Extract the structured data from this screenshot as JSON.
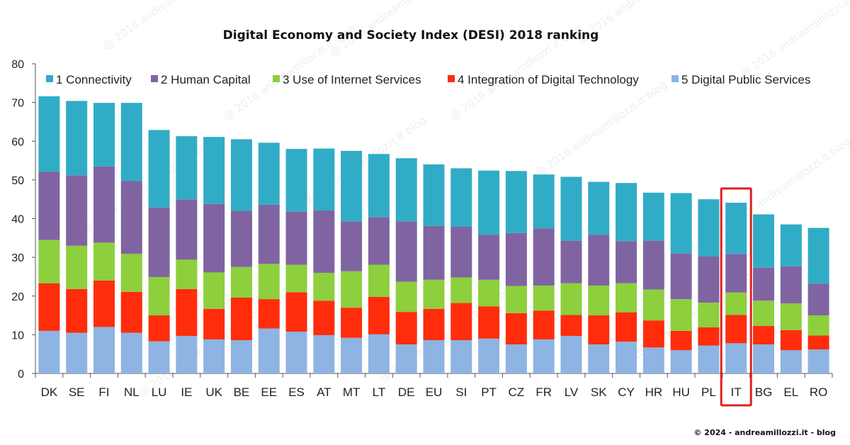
{
  "chart_data": {
    "type": "bar",
    "stacked": true,
    "title": "Digital Economy and Society Index (DESI) 2018 ranking",
    "xlabel": "",
    "ylabel": "",
    "ylim": [
      0,
      80
    ],
    "yticks": [
      0,
      10,
      20,
      30,
      40,
      50,
      60,
      70,
      80
    ],
    "grid": false,
    "legend_position": "top",
    "categories": [
      "DK",
      "SE",
      "FI",
      "NL",
      "LU",
      "IE",
      "UK",
      "BE",
      "EE",
      "ES",
      "AT",
      "MT",
      "LT",
      "DE",
      "EU",
      "SI",
      "PT",
      "CZ",
      "FR",
      "LV",
      "SK",
      "CY",
      "HR",
      "HU",
      "PL",
      "IT",
      "BG",
      "EL",
      "RO"
    ],
    "series": [
      {
        "name": "5 Digital Public Services",
        "color": "#8DB4E2",
        "values": [
          11.0,
          10.5,
          12.0,
          10.5,
          8.3,
          9.7,
          8.8,
          8.6,
          11.6,
          10.8,
          9.9,
          9.2,
          10.1,
          7.5,
          8.6,
          8.6,
          9.0,
          7.5,
          8.8,
          9.7,
          7.5,
          8.2,
          6.7,
          6.0,
          7.2,
          7.8,
          7.5,
          6.0,
          6.2
        ]
      },
      {
        "name": "4 Integration of Digital Technology",
        "color": "#FF2D0C",
        "values": [
          12.3,
          11.3,
          12.0,
          10.6,
          6.7,
          12.1,
          7.9,
          11.0,
          7.6,
          10.2,
          8.9,
          7.8,
          9.7,
          8.4,
          8.1,
          9.6,
          8.3,
          8.1,
          7.4,
          5.4,
          7.5,
          7.6,
          7.0,
          5.0,
          4.7,
          7.3,
          4.8,
          5.2,
          3.6
        ]
      },
      {
        "name": "3 Use of Internet Services",
        "color": "#8DCF3D",
        "values": [
          11.2,
          11.2,
          9.8,
          9.8,
          9.9,
          7.6,
          9.4,
          7.9,
          9.1,
          7.1,
          7.2,
          9.4,
          8.3,
          7.8,
          7.5,
          6.6,
          6.9,
          7.0,
          6.5,
          8.2,
          7.7,
          7.5,
          8.0,
          8.2,
          6.4,
          5.8,
          6.5,
          6.9,
          5.2
        ]
      },
      {
        "name": "2 Human Capital",
        "color": "#8064A2",
        "values": [
          17.6,
          18.2,
          19.7,
          18.8,
          18.0,
          15.6,
          17.7,
          14.5,
          15.3,
          13.7,
          16.1,
          12.9,
          12.3,
          15.6,
          13.9,
          13.1,
          11.6,
          13.7,
          14.8,
          11.0,
          13.1,
          10.9,
          12.6,
          11.8,
          11.9,
          10.0,
          8.5,
          9.6,
          8.2
        ]
      },
      {
        "name": "1 Connectivity",
        "color": "#31ACC6",
        "values": [
          19.5,
          19.2,
          16.4,
          20.2,
          20.0,
          16.3,
          17.3,
          18.5,
          16.0,
          16.2,
          16.0,
          18.2,
          16.3,
          16.3,
          15.9,
          15.1,
          16.6,
          16.0,
          13.9,
          16.5,
          13.7,
          15.0,
          12.4,
          15.6,
          14.8,
          13.2,
          13.8,
          10.8,
          14.4
        ]
      }
    ],
    "highlight": "IT"
  },
  "legend_order": [
    "1 Connectivity",
    "2 Human Capital",
    "3 Use of Internet Services",
    "4 Integration of Digital Technology",
    "5 Digital Public Services"
  ],
  "credit": "© 2024 - andreamillozzi.it - blog",
  "watermark": "@ 2016 andreamillozzi.it blog",
  "highlight_color": "#E02020"
}
